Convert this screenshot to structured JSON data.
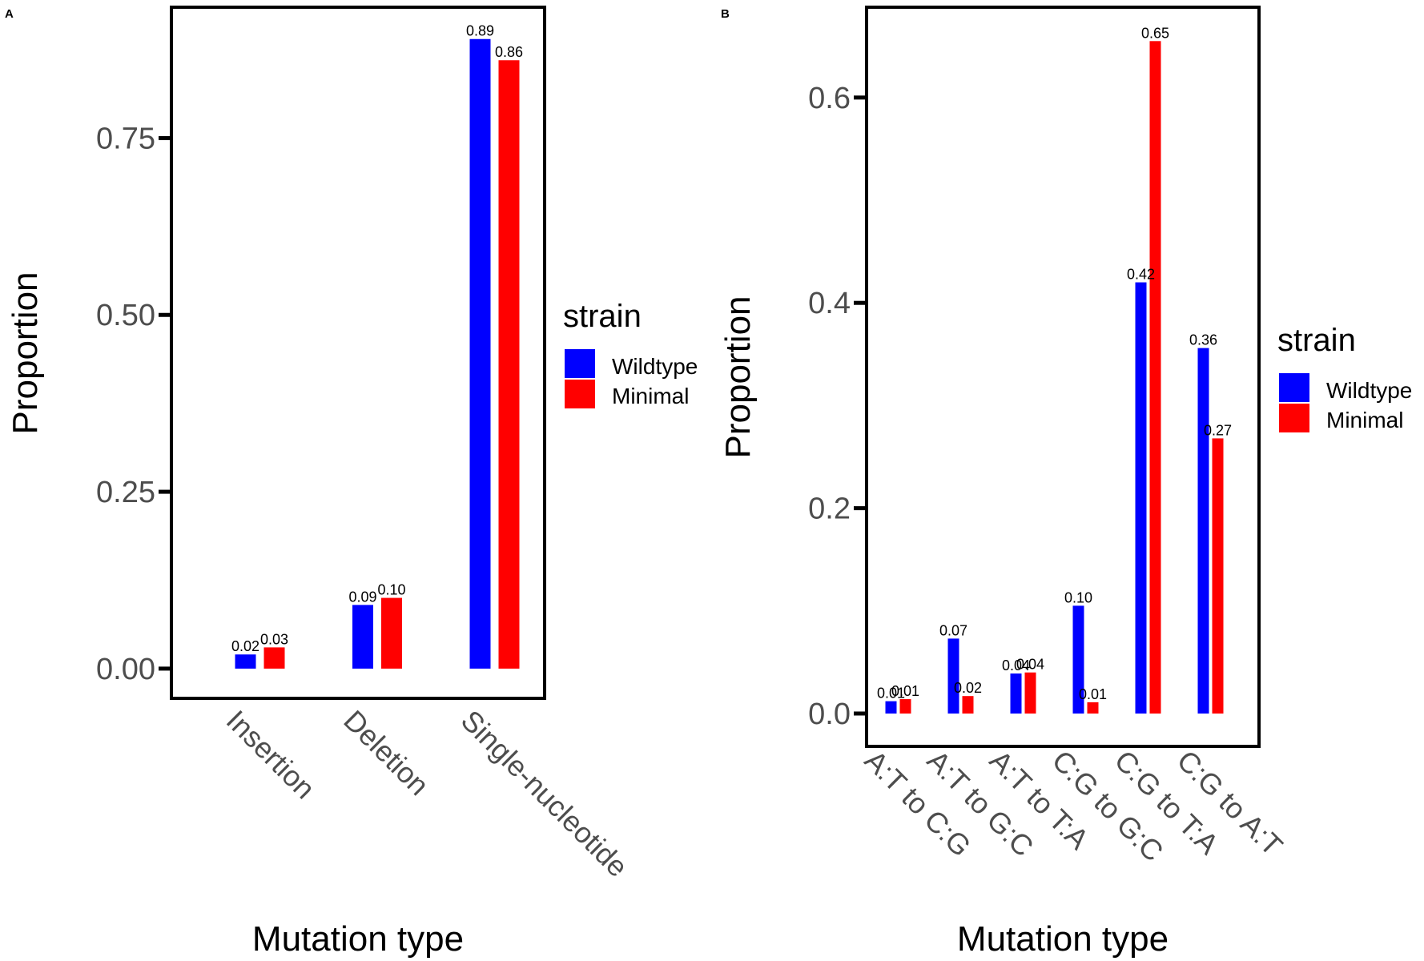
{
  "legend": {
    "title": "strain",
    "items": [
      {
        "label": "Wildtype",
        "color": "#0000FF"
      },
      {
        "label": "Minimal",
        "color": "#FF0000"
      }
    ]
  },
  "chart_data": [
    {
      "panel": "A",
      "type": "bar",
      "title": "",
      "xlabel": "Mutation type",
      "ylabel": "Proportion",
      "categories": [
        "Insertion",
        "Deletion",
        "Single-nucleotide"
      ],
      "series": [
        {
          "name": "Wildtype",
          "color": "#0000FF",
          "values": [
            0.02,
            0.09,
            0.89
          ],
          "labels": [
            "0.02",
            "0.09",
            "0.89"
          ]
        },
        {
          "name": "Minimal",
          "color": "#FF0000",
          "values": [
            0.03,
            0.1,
            0.86
          ],
          "labels": [
            "0.03",
            "0.10",
            "0.86"
          ]
        }
      ],
      "yticks": [
        0.0,
        0.25,
        0.5,
        0.75
      ],
      "ytick_labels": [
        "0.00",
        "0.25",
        "0.50",
        "0.75"
      ],
      "ylim": [
        -0.042,
        0.935
      ],
      "grid": false,
      "legend_position": "right"
    },
    {
      "panel": "B",
      "type": "bar",
      "title": "",
      "xlabel": "Mutation type",
      "ylabel": "Proportion",
      "categories": [
        "A:T to C:G",
        "A:T to G:C",
        "A:T to T:A",
        "C:G to G:C",
        "C:G to T:A",
        "C:G to A:T"
      ],
      "series": [
        {
          "name": "Wildtype",
          "color": "#0000FF",
          "values": [
            0.012,
            0.073,
            0.039,
            0.105,
            0.42,
            0.356
          ],
          "labels": [
            "0.01",
            "0.07",
            "0.04",
            "0.10",
            "0.42",
            "0.36"
          ]
        },
        {
          "name": "Minimal",
          "color": "#FF0000",
          "values": [
            0.014,
            0.017,
            0.04,
            0.011,
            0.655,
            0.268
          ],
          "labels": [
            "0.01",
            "0.02",
            "0.04",
            "0.01",
            "0.65",
            "0.27"
          ]
        }
      ],
      "yticks": [
        0.0,
        0.2,
        0.4,
        0.6
      ],
      "ytick_labels": [
        "0.0",
        "0.2",
        "0.4",
        "0.6"
      ],
      "ylim": [
        -0.032,
        0.688
      ],
      "grid": false,
      "legend_position": "right"
    }
  ]
}
